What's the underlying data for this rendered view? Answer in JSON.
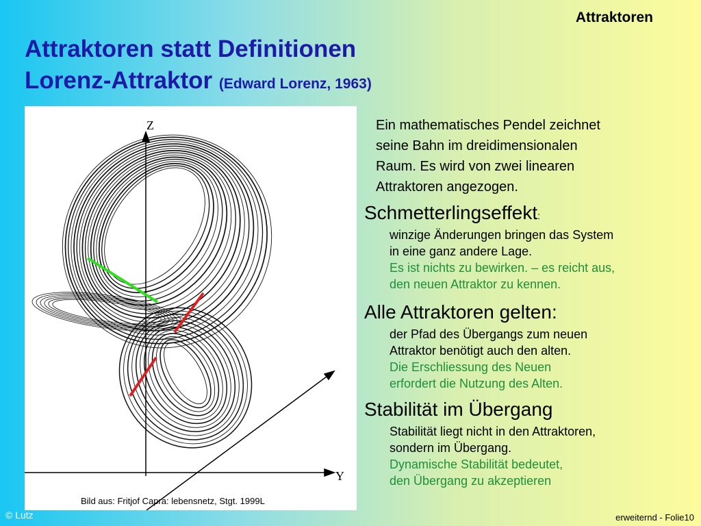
{
  "header": {
    "topic": "Attraktoren",
    "title_line1": "Attraktoren statt Definitionen",
    "title_line2": "Lorenz-Attraktor",
    "title_note": "(Edward Lorenz, 1963)"
  },
  "figure": {
    "z_label": "Z",
    "y_label": "Y",
    "caption": "Bild aus: Fritjof Capra: lebensnetz, Stgt. 1999L"
  },
  "intro": [
    "Ein mathematisches Pendel  zeichnet",
    "seine Bahn im dreidimensionalen",
    "Raum. Es wird von zwei linearen",
    "Attraktoren angezogen."
  ],
  "sections": [
    {
      "heading": "Schmetterlingseffekt",
      "heading_suffix": ":",
      "black": [
        "winzige Änderungen bringen das System",
        "in eine ganz andere Lage."
      ],
      "green": [
        "Es ist nichts zu bewirken. – es reicht aus,",
        "den neuen Attraktor zu kennen."
      ]
    },
    {
      "heading": "Alle Attraktoren gelten:",
      "heading_suffix": "",
      "black": [
        "der Pfad des Übergangs zum neuen",
        "Attraktor benötigt auch den alten."
      ],
      "green": [
        "Die Erschliessung des Neuen",
        "erfordert die Nutzung des Alten."
      ]
    },
    {
      "heading": "Stabilität im Übergang",
      "heading_suffix": "",
      "black": [
        "Stabilität liegt nicht in den Attraktoren,",
        "sondern im Übergang."
      ],
      "green": [
        "Dynamische Stabilität bedeutet,",
        "den Übergang zu akzeptieren"
      ]
    }
  ],
  "footer": {
    "copyright": "© Lutz",
    "slide": "erweiternd - Folie10"
  }
}
